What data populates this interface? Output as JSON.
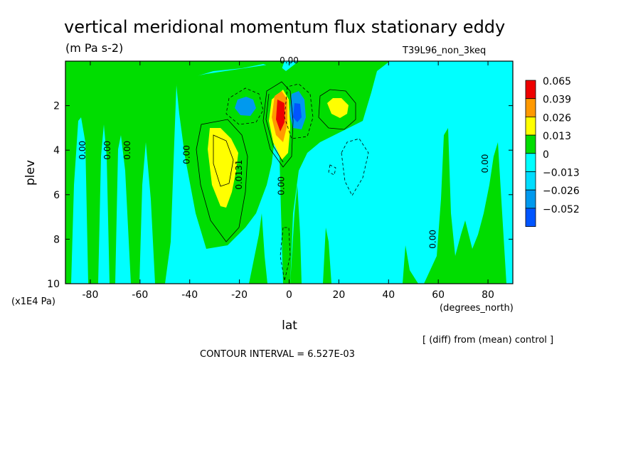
{
  "chart_data": {
    "type": "heatmap",
    "title": "vertical meridional momentum flux stationary eddy",
    "subtitle": "(m Pa s-2)",
    "experiment": "T39L96_non_3keq",
    "xlabel": "lat",
    "x_unit": "(degrees_north)",
    "ylabel": "plev",
    "y_unit": "(x1E4 Pa)",
    "xlim": [
      -90,
      90
    ],
    "ylim": [
      0,
      10
    ],
    "y_inverted": true,
    "x_ticks": [
      "-80",
      "-60",
      "-40",
      "-20",
      "0",
      "20",
      "40",
      "60",
      "80"
    ],
    "x_tick_values": [
      -80,
      -60,
      -40,
      -20,
      0,
      20,
      40,
      60,
      80
    ],
    "y_ticks": [
      "2",
      "4",
      "6",
      "8",
      "10"
    ],
    "y_tick_values": [
      2,
      4,
      6,
      8,
      10
    ],
    "colorbar": {
      "levels": [
        "0.065",
        "0.039",
        "0.026",
        "0.013",
        "0",
        "−0.013",
        "−0.026",
        "−0.052"
      ],
      "colors": [
        "#ee0000",
        "#ff9900",
        "#ffff00",
        "#00dd00",
        "#00ffff",
        "#00ddff",
        "#0099ee",
        "#0055ff"
      ]
    },
    "contour_labels": [
      {
        "text": "0.00",
        "lat": -82,
        "plev": 4.0
      },
      {
        "text": "0.00",
        "lat": -72,
        "plev": 4.0
      },
      {
        "text": "0.00",
        "lat": -64,
        "plev": 4.0
      },
      {
        "text": "0.00",
        "lat": -40,
        "plev": 4.2
      },
      {
        "text": "0.0131",
        "lat": -19,
        "plev": 5.1
      },
      {
        "text": "0.00",
        "lat": -2,
        "plev": 5.6
      },
      {
        "text": "0.00",
        "lat": 0,
        "plev": 0.1
      },
      {
        "text": "0.00",
        "lat": 59,
        "plev": 8.0
      },
      {
        "text": "0.00",
        "lat": 80,
        "plev": 4.6
      }
    ],
    "features": [
      {
        "sign": "positive",
        "level": "0.013",
        "lat": -28,
        "plev": 4.5
      },
      {
        "sign": "positive",
        "level": "0.065",
        "lat": -3,
        "plev": 2.6
      },
      {
        "sign": "positive",
        "level": "0.013",
        "lat": 19,
        "plev": 2.2
      },
      {
        "sign": "negative",
        "level": "-0.026",
        "lat": -17,
        "plev": 2.1
      },
      {
        "sign": "negative",
        "level": "-0.052",
        "lat": 5,
        "plev": 2.5
      }
    ],
    "annotations": {
      "diff_note": "[ (diff) from (mean) control ]",
      "contour_interval": "CONTOUR INTERVAL = 6.527E-03"
    }
  }
}
